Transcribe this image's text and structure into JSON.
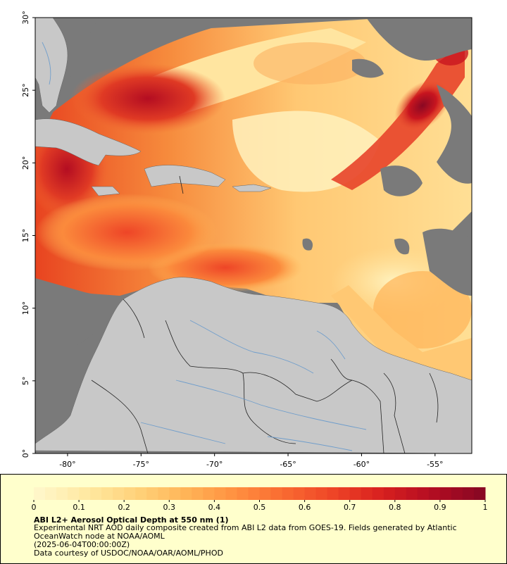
{
  "map": {
    "x_ticks": [
      "-80°",
      "-75°",
      "-70°",
      "-65°",
      "-60°",
      "-55°"
    ],
    "y_ticks": [
      "0°",
      "5°",
      "10°",
      "15°",
      "20°",
      "25°",
      "30°"
    ],
    "extent": {
      "lon": [
        -82.2,
        -52.5
      ],
      "lat": [
        0,
        30
      ]
    },
    "colors": {
      "land": "#c8c8c8",
      "no_data": "#7a7a7a",
      "river": "#6699cc",
      "border": "#333333"
    }
  },
  "legend": {
    "colorbar_ticks": [
      "0",
      "0.1",
      "0.2",
      "0.3",
      "0.4",
      "0.5",
      "0.6",
      "0.7",
      "0.8",
      "0.9",
      "1"
    ],
    "colorbar_range": [
      0,
      1
    ],
    "colorbar_colors": [
      "#fff6c8",
      "#ffe8a0",
      "#ffd27a",
      "#ffb457",
      "#ff9040",
      "#f96a31",
      "#ee4527",
      "#d8201f",
      "#b40d22",
      "#8a0823"
    ],
    "title": "ABI L2+ Aerosol Optical Depth at 550 nm (1)",
    "description": "Experimental NRT AOD daily composite created from ABI L2 data from GOES-19. Fields generated by Atlantic OceanWatch node at NOAA/AOML",
    "timestamp": "(2025-06-04T00:00:00Z)",
    "credit": "Data courtesy of USDOC/NOAA/OAR/AOML/PHOD"
  }
}
